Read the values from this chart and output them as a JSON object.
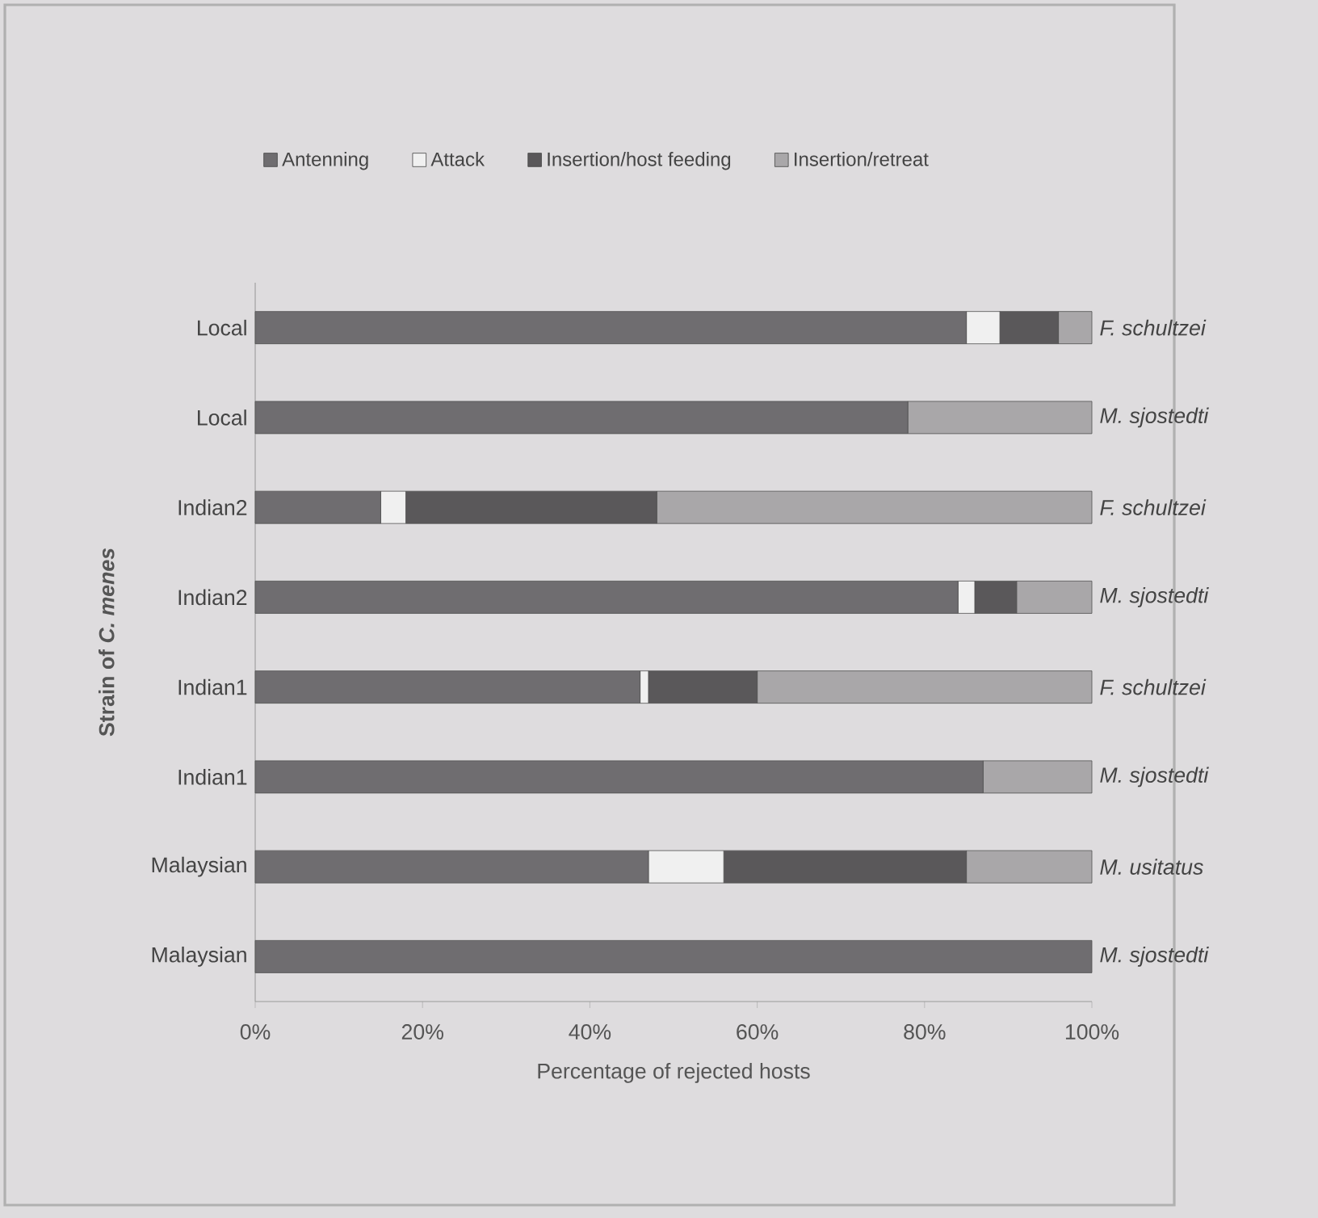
{
  "chart_data": {
    "type": "bar",
    "orientation": "horizontal",
    "stacked": true,
    "ylabel": "Strain of *C. menes*",
    "xlabel": "Percentage of rejected hosts",
    "categories": [
      "Local",
      "Local",
      "Indian2",
      "Indian2",
      "Indian1",
      "Indian1",
      "Malaysian",
      "Malaysian"
    ],
    "series": [
      {
        "name": "Antenning",
        "color": "#6f6d70",
        "values": [
          85,
          78,
          15,
          84,
          46,
          87,
          47,
          100
        ]
      },
      {
        "name": "Attack",
        "color": "#f0f0f0",
        "values": [
          4,
          0,
          3,
          2,
          1,
          0,
          9,
          0
        ]
      },
      {
        "name": "Insertion/host feeding",
        "color": "#5a585a",
        "values": [
          7,
          0,
          30,
          5,
          13,
          0,
          29,
          0
        ]
      },
      {
        "name": "Insertion/retreat",
        "color": "#a9a7a9",
        "values": [
          4,
          22,
          52,
          9,
          40,
          13,
          15,
          0
        ]
      }
    ],
    "annotations": [
      "F. schultzei",
      "M. sjostedti",
      "F. schultzei",
      "M. sjostedti",
      "F. schultzei",
      "M. sjostedti",
      "M. usitatus",
      "M. sjostedti"
    ],
    "xlim": [
      0,
      100
    ],
    "xticks": [
      {
        "value": 0,
        "label": "0%"
      },
      {
        "value": 20,
        "label": "20%"
      },
      {
        "value": 40,
        "label": "40%"
      },
      {
        "value": 60,
        "label": "60%"
      },
      {
        "value": 80,
        "label": "80%"
      },
      {
        "value": 100,
        "label": "100%"
      }
    ],
    "grid": false,
    "legend": "top"
  }
}
